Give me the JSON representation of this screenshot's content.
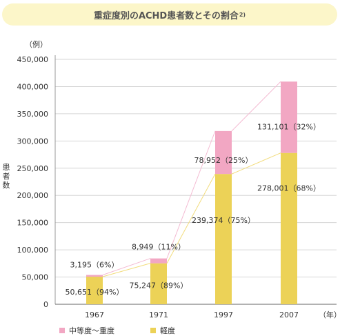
{
  "title": {
    "text": "重症度別のACHD患者数とその割合",
    "superscript": "2)"
  },
  "y_unit": "（例）",
  "ylabel": "患者数",
  "x_unit": "（年）",
  "legend": {
    "moderate_severe": "中等度〜重度",
    "mild": "軽度"
  },
  "colors": {
    "moderate_severe": "#f2a7c3",
    "mild": "#ecd257",
    "title_bg": "#fcf6c9",
    "grid": "#d6d6d6"
  },
  "chart_data": {
    "type": "bar",
    "stacked": true,
    "categories": [
      "1967",
      "1971",
      "1997",
      "2007"
    ],
    "ylim": [
      0,
      450000
    ],
    "yticks": [
      0,
      50000,
      100000,
      150000,
      200000,
      250000,
      300000,
      350000,
      400000,
      450000
    ],
    "ytick_labels": [
      "0",
      "50,000",
      "100,000",
      "150,000",
      "200,000",
      "250,000",
      "300,000",
      "350,000",
      "400,000",
      "450,000"
    ],
    "grid": "horizontal",
    "connector_lines": true,
    "series": [
      {
        "name": "軽度",
        "values": [
          50651,
          75247,
          239374,
          278001
        ],
        "labels": [
          "50,651（94%）",
          "75,247（89%）",
          "239,374（75%）",
          "278,001（68%）"
        ]
      },
      {
        "name": "中等度〜重度",
        "values": [
          3195,
          8949,
          78952,
          131101
        ],
        "labels": [
          "3,195（6%）",
          "8,949（11%）",
          "78,952（25%）",
          "131,101（32%）"
        ]
      }
    ]
  }
}
